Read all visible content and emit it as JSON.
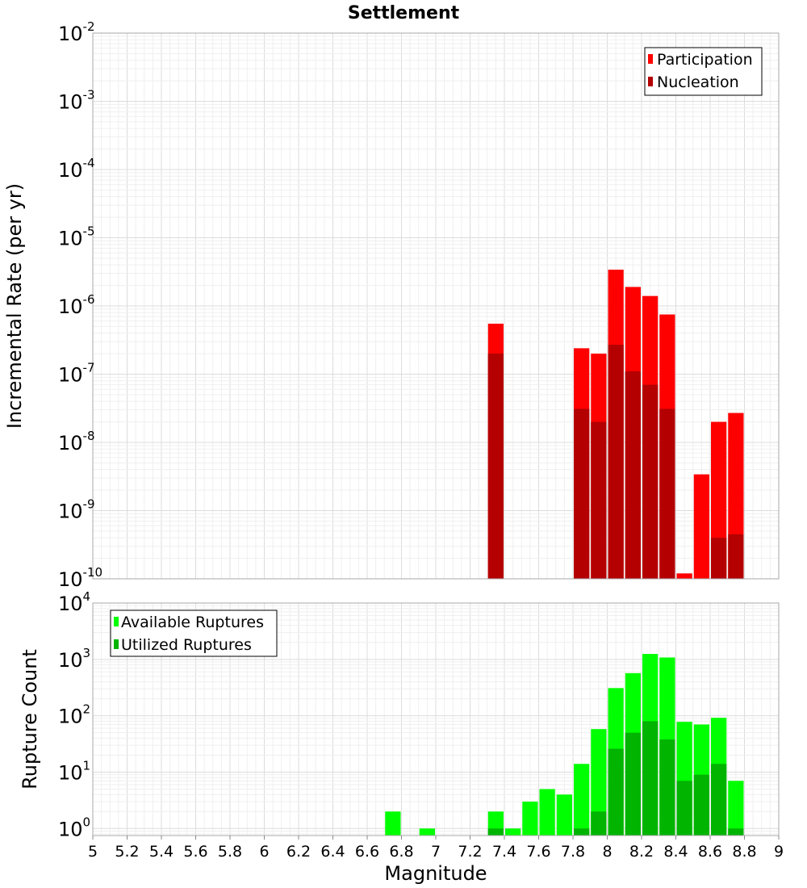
{
  "chart_data": [
    {
      "type": "bar",
      "title": "Settlement",
      "xlabel": "",
      "ylabel": "Incremental Rate (per yr)",
      "yscale": "log",
      "xlim": [
        5,
        9
      ],
      "ylim": [
        1e-10,
        0.01
      ],
      "grid": true,
      "legend_position": "top-right",
      "x": [
        7.35,
        7.85,
        7.95,
        8.05,
        8.15,
        8.25,
        8.35,
        8.45,
        8.55,
        8.65,
        8.75
      ],
      "series": [
        {
          "name": "Participation",
          "color": "#ff0000",
          "values": [
            5.5e-07,
            2.4e-07,
            2e-07,
            3.4e-06,
            1.9e-06,
            1.4e-06,
            7.5e-07,
            1.2e-10,
            3.4e-09,
            2e-08,
            2.7e-08
          ]
        },
        {
          "name": "Nucleation",
          "color": "#b40000",
          "values": [
            2e-07,
            3.1e-08,
            2e-08,
            2.7e-07,
            1.1e-07,
            7e-08,
            3.1e-08,
            null,
            null,
            4e-10,
            4.5e-10
          ]
        }
      ],
      "yticks": [
        {
          "base": "10",
          "exp": "-10"
        },
        {
          "base": "10",
          "exp": "-9"
        },
        {
          "base": "10",
          "exp": "-8"
        },
        {
          "base": "10",
          "exp": "-7"
        },
        {
          "base": "10",
          "exp": "-6"
        },
        {
          "base": "10",
          "exp": "-5"
        },
        {
          "base": "10",
          "exp": "-4"
        },
        {
          "base": "10",
          "exp": "-3"
        },
        {
          "base": "10",
          "exp": "-2"
        }
      ]
    },
    {
      "type": "bar",
      "title": "",
      "xlabel": "Magnitude",
      "ylabel": "Rupture Count",
      "yscale": "log",
      "xlim": [
        5,
        9
      ],
      "ylim": [
        0.75,
        10000
      ],
      "grid": true,
      "legend_position": "top-left",
      "x": [
        6.75,
        6.95,
        7.35,
        7.45,
        7.55,
        7.65,
        7.75,
        7.85,
        7.95,
        8.05,
        8.15,
        8.25,
        8.35,
        8.45,
        8.55,
        8.65,
        8.75
      ],
      "series": [
        {
          "name": "Available Ruptures",
          "color": "#00ff00",
          "values": [
            2,
            1,
            2,
            1,
            3,
            5,
            4,
            14,
            58,
            310,
            570,
            1250,
            1080,
            78,
            70,
            92,
            7
          ]
        },
        {
          "name": "Utilized Ruptures",
          "color": "#00b400",
          "values": [
            null,
            null,
            1,
            null,
            null,
            null,
            null,
            1,
            2,
            26,
            50,
            80,
            38,
            7,
            9,
            14,
            1
          ]
        }
      ],
      "yticks": [
        {
          "base": "10",
          "exp": "0"
        },
        {
          "base": "10",
          "exp": "1"
        },
        {
          "base": "10",
          "exp": "2"
        },
        {
          "base": "10",
          "exp": "3"
        },
        {
          "base": "10",
          "exp": "4"
        }
      ],
      "xticks": [
        "5",
        "5.2",
        "5.4",
        "5.6",
        "5.8",
        "6",
        "6.2",
        "6.4",
        "6.6",
        "6.8",
        "7",
        "7.2",
        "7.4",
        "7.6",
        "7.8",
        "8",
        "8.2",
        "8.4",
        "8.6",
        "8.8",
        "9"
      ]
    }
  ]
}
